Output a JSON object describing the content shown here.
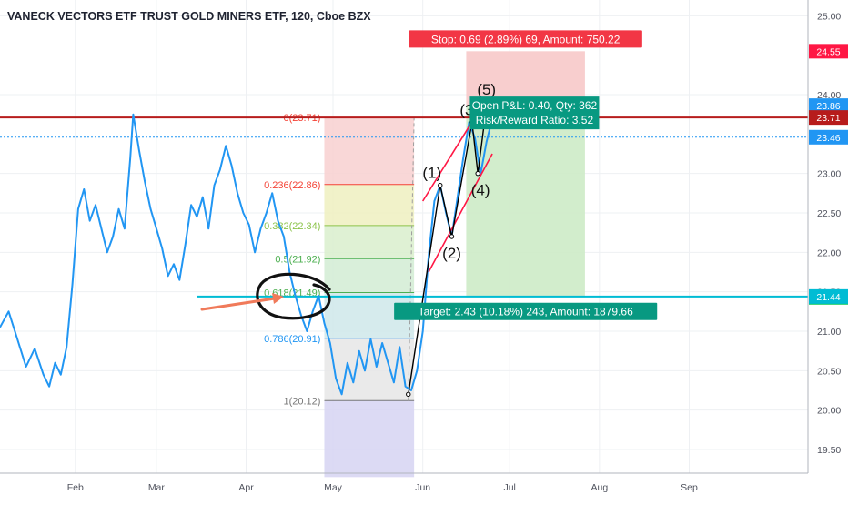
{
  "header": {
    "title": "VANECK VECTORS ETF TRUST GOLD MINERS ETF, 120, Cboe BZX"
  },
  "chart_data": {
    "type": "line",
    "title": "VANECK VECTORS ETF TRUST GOLD MINERS ETF, 120, Cboe BZX",
    "xlabel": "",
    "ylabel": "",
    "x_range": [
      "2019-01-06",
      "2019-10-12"
    ],
    "ylim": [
      19.2,
      25.2
    ],
    "grid": true,
    "x_ticks": [
      {
        "label": "Feb",
        "date": "2019-02-01"
      },
      {
        "label": "Mar",
        "date": "2019-03-01"
      },
      {
        "label": "Apr",
        "date": "2019-04-01"
      },
      {
        "label": "May",
        "date": "2019-05-01"
      },
      {
        "label": "Jun",
        "date": "2019-06-01"
      },
      {
        "label": "Jul",
        "date": "2019-07-01"
      },
      {
        "label": "Aug",
        "date": "2019-08-01"
      },
      {
        "label": "Sep",
        "date": "2019-09-01"
      }
    ],
    "y_ticks": [
      "19.50",
      "20.00",
      "20.50",
      "21.00",
      "21.50",
      "22.00",
      "22.50",
      "23.00",
      "24.00",
      "25.00"
    ],
    "series": [
      {
        "color": "#2196f3",
        "points": [
          [
            "2019-01-06",
            21.05
          ],
          [
            "2019-01-09",
            21.25
          ],
          [
            "2019-01-12",
            20.9
          ],
          [
            "2019-01-15",
            20.55
          ],
          [
            "2019-01-18",
            20.78
          ],
          [
            "2019-01-21",
            20.45
          ],
          [
            "2019-01-23",
            20.3
          ],
          [
            "2019-01-25",
            20.6
          ],
          [
            "2019-01-27",
            20.45
          ],
          [
            "2019-01-29",
            20.8
          ],
          [
            "2019-01-31",
            21.6
          ],
          [
            "2019-02-02",
            22.55
          ],
          [
            "2019-02-04",
            22.8
          ],
          [
            "2019-02-06",
            22.4
          ],
          [
            "2019-02-08",
            22.6
          ],
          [
            "2019-02-10",
            22.3
          ],
          [
            "2019-02-12",
            22.0
          ],
          [
            "2019-02-14",
            22.2
          ],
          [
            "2019-02-16",
            22.55
          ],
          [
            "2019-02-18",
            22.3
          ],
          [
            "2019-02-20",
            23.2
          ],
          [
            "2019-02-21",
            23.75
          ],
          [
            "2019-02-23",
            23.3
          ],
          [
            "2019-02-25",
            22.9
          ],
          [
            "2019-02-27",
            22.55
          ],
          [
            "2019-03-01",
            22.3
          ],
          [
            "2019-03-03",
            22.05
          ],
          [
            "2019-03-05",
            21.7
          ],
          [
            "2019-03-07",
            21.85
          ],
          [
            "2019-03-09",
            21.65
          ],
          [
            "2019-03-11",
            22.1
          ],
          [
            "2019-03-13",
            22.6
          ],
          [
            "2019-03-15",
            22.45
          ],
          [
            "2019-03-17",
            22.7
          ],
          [
            "2019-03-19",
            22.3
          ],
          [
            "2019-03-21",
            22.85
          ],
          [
            "2019-03-23",
            23.05
          ],
          [
            "2019-03-25",
            23.35
          ],
          [
            "2019-03-27",
            23.1
          ],
          [
            "2019-03-29",
            22.75
          ],
          [
            "2019-03-31",
            22.5
          ],
          [
            "2019-04-02",
            22.35
          ],
          [
            "2019-04-04",
            22.0
          ],
          [
            "2019-04-06",
            22.3
          ],
          [
            "2019-04-08",
            22.5
          ],
          [
            "2019-04-10",
            22.75
          ],
          [
            "2019-04-12",
            22.4
          ],
          [
            "2019-04-14",
            22.2
          ],
          [
            "2019-04-16",
            21.75
          ],
          [
            "2019-04-18",
            21.45
          ],
          [
            "2019-04-20",
            21.2
          ],
          [
            "2019-04-22",
            21.0
          ],
          [
            "2019-04-24",
            21.25
          ],
          [
            "2019-04-26",
            21.45
          ],
          [
            "2019-04-28",
            21.1
          ],
          [
            "2019-04-30",
            20.85
          ],
          [
            "2019-05-02",
            20.4
          ],
          [
            "2019-05-04",
            20.2
          ],
          [
            "2019-05-06",
            20.6
          ],
          [
            "2019-05-08",
            20.35
          ],
          [
            "2019-05-10",
            20.75
          ],
          [
            "2019-05-12",
            20.5
          ],
          [
            "2019-05-14",
            20.9
          ],
          [
            "2019-05-16",
            20.55
          ],
          [
            "2019-05-18",
            20.85
          ],
          [
            "2019-05-20",
            20.6
          ],
          [
            "2019-05-22",
            20.35
          ],
          [
            "2019-05-24",
            20.8
          ],
          [
            "2019-05-26",
            20.3
          ],
          [
            "2019-05-28",
            20.25
          ],
          [
            "2019-05-30",
            20.5
          ],
          [
            "2019-06-01",
            21.0
          ],
          [
            "2019-06-03",
            21.95
          ],
          [
            "2019-06-05",
            22.65
          ],
          [
            "2019-06-07",
            22.85
          ],
          [
            "2019-06-09",
            22.5
          ],
          [
            "2019-06-11",
            22.2
          ],
          [
            "2019-06-13",
            22.7
          ],
          [
            "2019-06-15",
            23.2
          ],
          [
            "2019-06-17",
            23.65
          ],
          [
            "2019-06-19",
            23.45
          ],
          [
            "2019-06-21",
            23.0
          ],
          [
            "2019-06-23",
            23.4
          ],
          [
            "2019-06-25",
            23.7
          ],
          [
            "2019-06-26",
            23.86
          ]
        ]
      }
    ],
    "horizontal_lines": [
      {
        "value": 23.71,
        "label": "23.71",
        "color": "#b71c1c"
      },
      {
        "value": 23.46,
        "label": "23.46",
        "color": "#2196f3",
        "style": "dotted"
      },
      {
        "value": 21.44,
        "label": "21.44",
        "color": "#00bcd4"
      }
    ],
    "price_labels": [
      {
        "value": 24.55,
        "label": "24.55",
        "color": "#ff1744"
      },
      {
        "value": 23.86,
        "label": "23.86",
        "color": "#2196f3"
      },
      {
        "value": 21.43,
        "label": "21.43",
        "color": "#00c853"
      }
    ],
    "fibonacci": {
      "start_date": "2019-04-28",
      "end_date": "2019-05-29",
      "levels": [
        {
          "ratio": "0",
          "value": 23.71,
          "label": "0(23.71)",
          "color": "#f44336",
          "fill": "#f8d0d0"
        },
        {
          "ratio": "0.236",
          "value": 22.86,
          "label": "0.236(22.86)",
          "color": "#f44336",
          "fill": "#eef0c0"
        },
        {
          "ratio": "0.382",
          "value": 22.34,
          "label": "0.382(22.34)",
          "color": "#8bc34a",
          "fill": "#d9efcc"
        },
        {
          "ratio": "0.5",
          "value": 21.92,
          "label": "0.5(21.92)",
          "color": "#4caf50",
          "fill": "#d2ecd4"
        },
        {
          "ratio": "0.618",
          "value": 21.49,
          "label": "0.618(21.49)",
          "color": "#4caf50",
          "fill": "#cfe8ea"
        },
        {
          "ratio": "0.786",
          "value": 20.91,
          "label": "0.786(20.91)",
          "color": "#2196f3",
          "fill": "#e6e6e6"
        },
        {
          "ratio": "1",
          "value": 20.12,
          "label": "1(20.12)",
          "color": "#777777",
          "fill": "#d6d3f2"
        }
      ],
      "extension_bottom_value": 19.15
    },
    "position": {
      "start_date": "2019-06-16",
      "end_date": "2019-07-27",
      "entry": 23.86,
      "stop": 24.55,
      "target": 21.43,
      "stop_label": "Stop: 0.69 (2.89%) 69, Amount: 750.22",
      "target_label": "Target: 2.43 (10.18%) 243, Amount: 1879.66",
      "pnl_label": "Open P&L: 0.40, Qty: 362",
      "rr_label": "Risk/Reward Ratio: 3.52"
    },
    "elliott_waves": [
      {
        "label": "(1)",
        "date": "2019-06-07",
        "value": 22.85
      },
      {
        "label": "(2)",
        "date": "2019-06-11",
        "value": 22.2
      },
      {
        "label": "(3)",
        "date": "2019-06-18",
        "value": 23.65
      },
      {
        "label": "(4)",
        "date": "2019-06-20",
        "value": 23.0
      },
      {
        "label": "(5)",
        "date": "2019-06-23",
        "value": 23.86
      }
    ],
    "wave_path": [
      [
        "2019-05-27",
        20.2
      ],
      [
        "2019-06-07",
        22.85
      ],
      [
        "2019-06-11",
        22.2
      ],
      [
        "2019-06-18",
        23.65
      ],
      [
        "2019-06-20",
        23.0
      ],
      [
        "2019-06-23",
        23.86
      ]
    ],
    "fib_trend_line": [
      [
        "2019-05-27",
        20.12
      ],
      [
        "2019-05-29",
        23.71
      ]
    ],
    "channel_lines": [
      {
        "from": [
          "2019-06-01",
          22.65
        ],
        "to": [
          "2019-06-23",
          23.95
        ],
        "color": "#ff1744"
      },
      {
        "from": [
          "2019-06-03",
          21.75
        ],
        "to": [
          "2019-06-25",
          23.25
        ],
        "color": "#ff1744"
      }
    ],
    "cyan_line_start_date": "2019-03-15"
  }
}
